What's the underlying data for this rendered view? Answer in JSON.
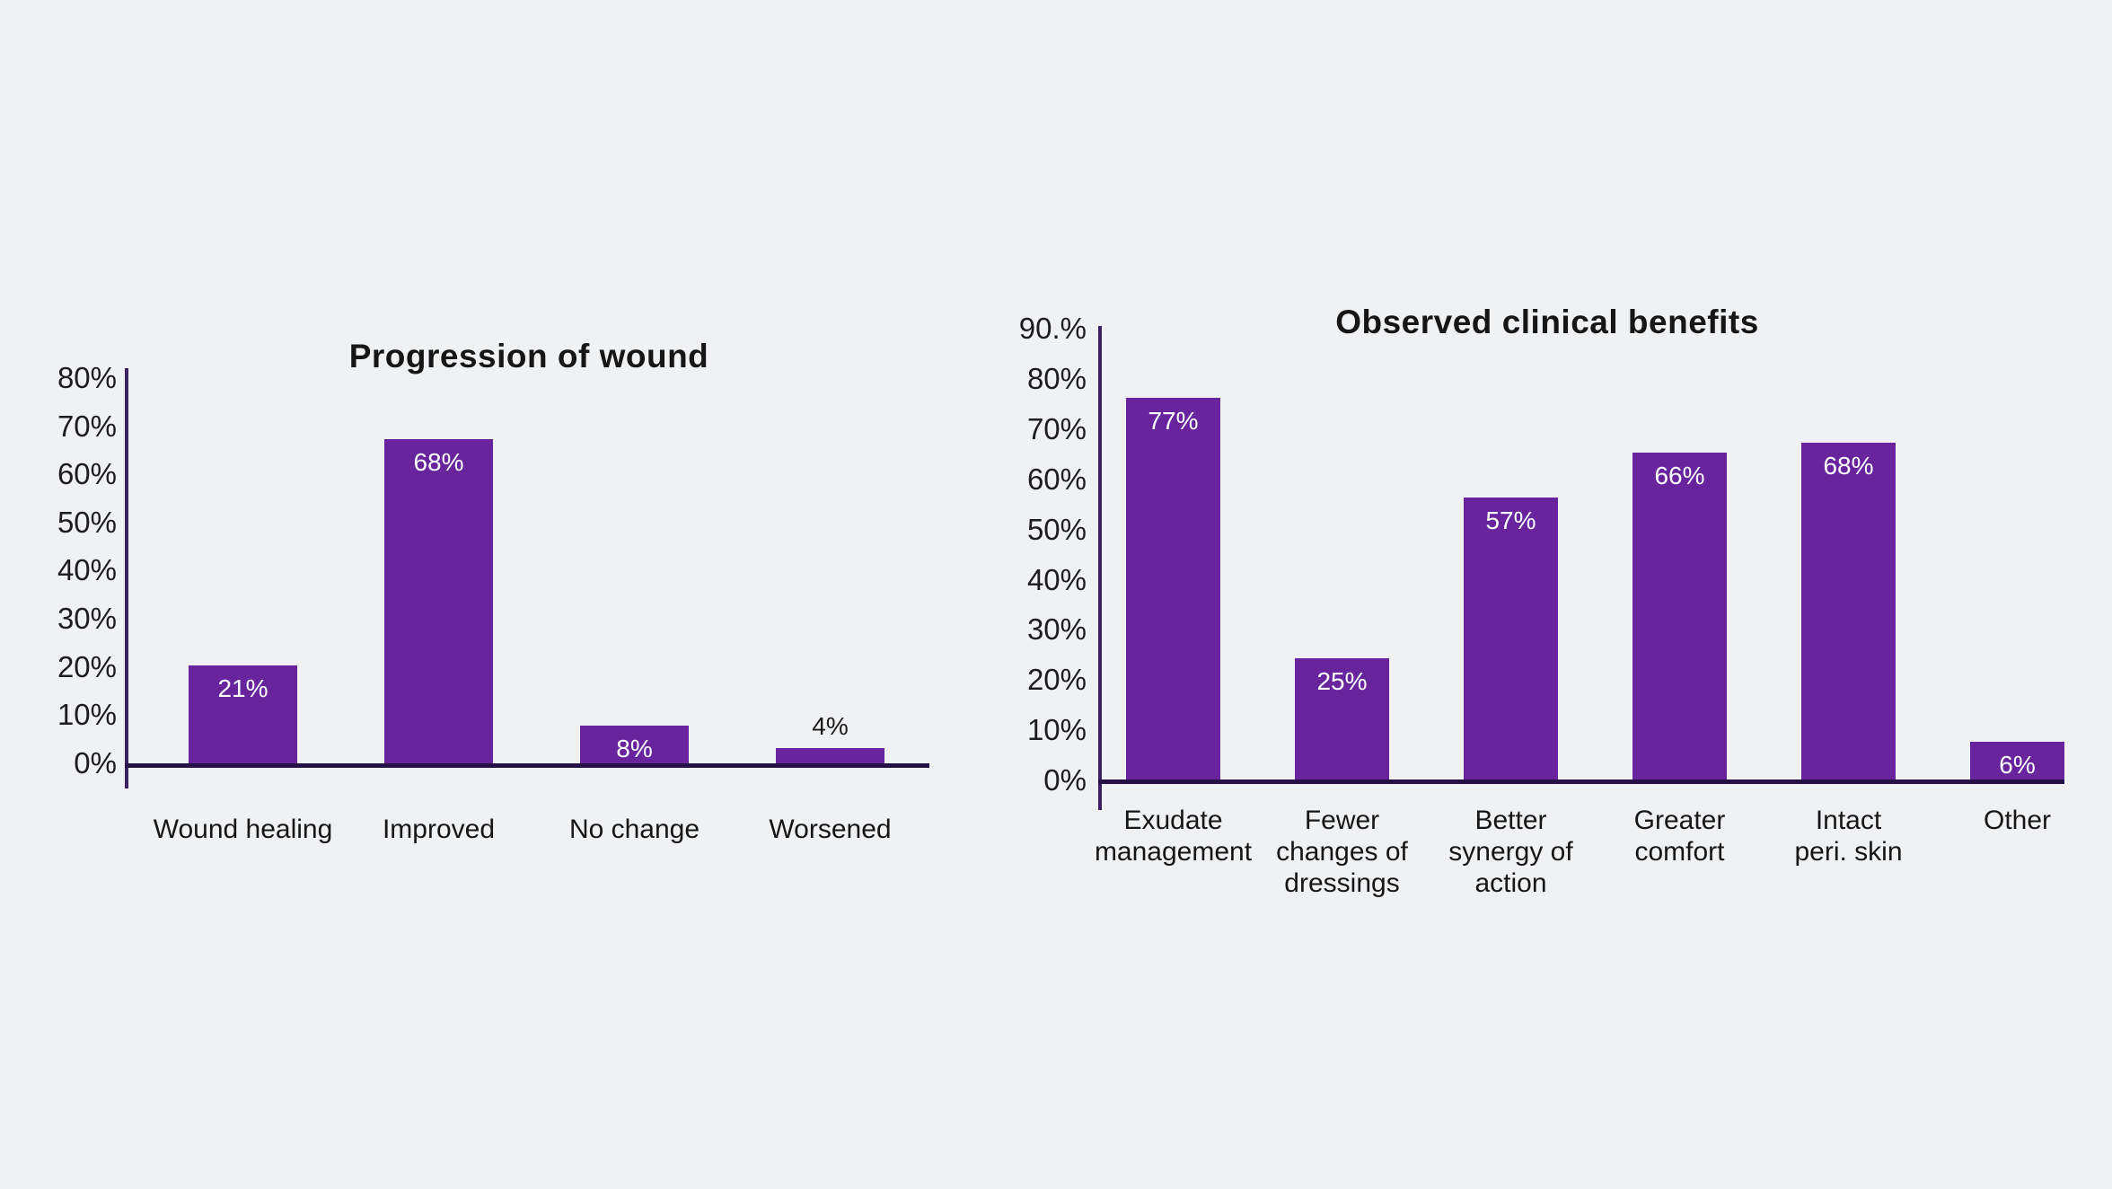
{
  "page": {
    "background_color": "#f0f1f3",
    "bar_color": "#67249c",
    "vertical_axis_color": "#3c2066",
    "baseline_color": "#251147",
    "value_label_inside_color": "#ffffff",
    "value_label_outside_color": "#1a1a1a"
  },
  "chart_data": [
    {
      "type": "bar",
      "title": "Progression of wound",
      "xlabel": "",
      "ylabel": "",
      "ylim": [
        0,
        80
      ],
      "grid": false,
      "legend": "none",
      "yticks": [
        "80%",
        "70%",
        "60%",
        "50%",
        "40%",
        "30%",
        "20%",
        "10%",
        "0%"
      ],
      "categories": [
        "Wound healing",
        "Improved",
        "No change",
        "Worsened"
      ],
      "values": [
        21,
        68,
        8,
        4
      ],
      "value_labels": [
        "21%",
        "68%",
        "8%",
        "4%"
      ],
      "value_label_position": [
        "inside",
        "inside",
        "inside",
        "above"
      ]
    },
    {
      "type": "bar",
      "title": "Observed clinical benefits",
      "xlabel": "",
      "ylabel": "",
      "ylim": [
        0,
        90
      ],
      "grid": false,
      "legend": "none",
      "yticks": [
        "90.%",
        "80%",
        "70%",
        "60%",
        "50%",
        "40%",
        "30%",
        "20%",
        "10%",
        "0%"
      ],
      "categories": [
        "Exudate\nmanagement",
        "Fewer\nchanges of\ndressings",
        "Better\nsynergy of\naction",
        "Greater\ncomfort",
        "Intact\nperi. skin",
        "Other"
      ],
      "values": [
        77,
        25,
        57,
        66,
        68,
        6
      ],
      "value_labels": [
        "77%",
        "25%",
        "57%",
        "66%",
        "68%",
        "6%"
      ],
      "value_label_position": [
        "inside",
        "inside",
        "inside",
        "inside",
        "inside",
        "inside"
      ]
    }
  ]
}
